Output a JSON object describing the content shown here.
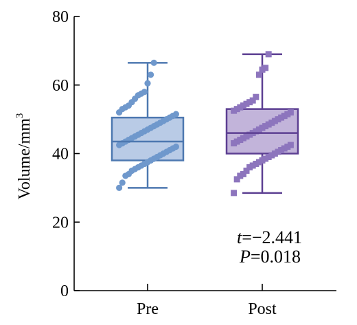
{
  "chart_data": {
    "type": "box",
    "categories": [
      "Pre",
      "Post"
    ],
    "ylabel": "Volume/mm",
    "ylabel_superscript": "3",
    "ylim": [
      0,
      80
    ],
    "yticks": [
      0,
      20,
      40,
      60,
      80
    ],
    "grid": false,
    "series": [
      {
        "category": "Pre",
        "color": "#4d78b0",
        "fill": "#b9cbe6",
        "point_color": "#6f98cc",
        "marker": "circle",
        "min": 30,
        "q1": 38,
        "median": 43.5,
        "q3": 50.5,
        "max": 66.5,
        "points": [
          66.5,
          63,
          60.5,
          58,
          57.5,
          57,
          56,
          55,
          54,
          53.5,
          53,
          52,
          51.5,
          51,
          50.5,
          50,
          49.5,
          49,
          48.5,
          48,
          47.5,
          47,
          46.5,
          46,
          45.5,
          45,
          44.5,
          44,
          43.5,
          43,
          42.5,
          42,
          41.5,
          41,
          40.5,
          40,
          39.5,
          39,
          38.5,
          38,
          37.5,
          37,
          36.5,
          36,
          35.5,
          35,
          34,
          33.5,
          31.5,
          30
        ]
      },
      {
        "category": "Post",
        "color": "#5c3f92",
        "fill": "#c2b4da",
        "point_color": "#8d75bd",
        "marker": "square",
        "min": 28.5,
        "q1": 40,
        "median": 46,
        "q3": 53,
        "max": 69,
        "points": [
          69,
          65,
          64.5,
          63,
          56.5,
          55.5,
          55,
          54.5,
          54,
          53.5,
          53,
          52.5,
          52,
          51.5,
          51,
          50.5,
          50,
          49.5,
          49,
          48.5,
          48,
          47.5,
          47,
          46.5,
          46,
          45.5,
          45,
          44.5,
          44,
          43.5,
          43,
          42.5,
          42,
          41.5,
          41,
          40.5,
          40,
          39.5,
          39,
          38.5,
          38,
          37.5,
          37,
          36.5,
          36,
          35,
          34,
          33.5,
          32.5,
          28.5
        ]
      }
    ],
    "annotations": {
      "t_label": "t",
      "t_value": "=−2.441",
      "p_label": "P",
      "p_value": "=0.018"
    }
  }
}
